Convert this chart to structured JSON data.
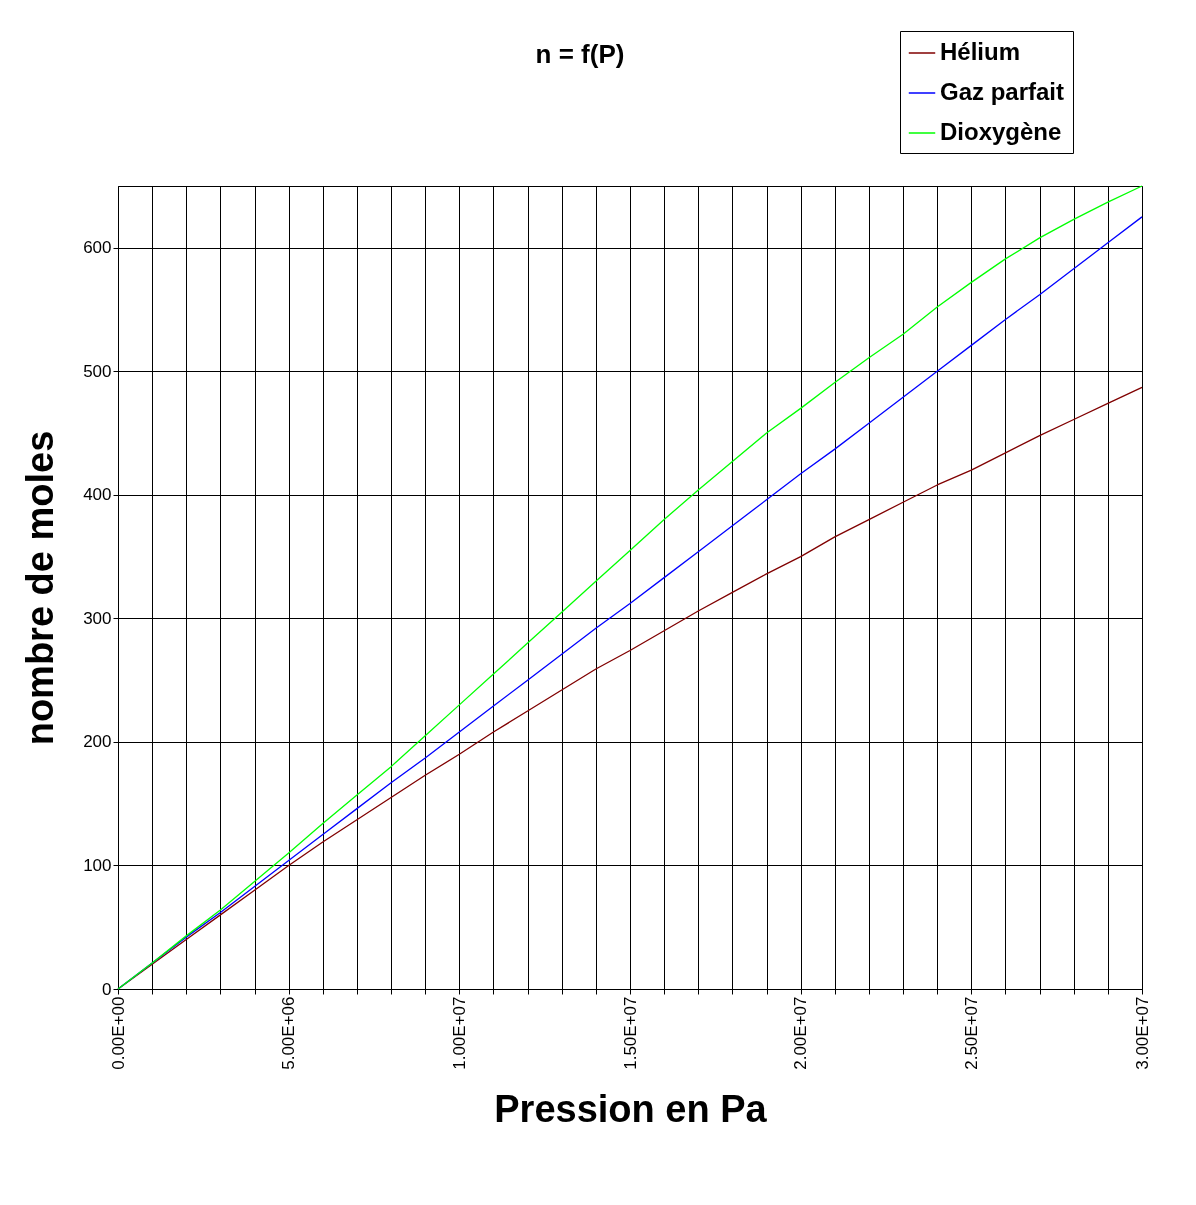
{
  "chart_data": {
    "type": "line",
    "title": "n = f(P)",
    "xlabel": "Pression en Pa",
    "ylabel": "nombre de moles",
    "x": [
      0,
      1000000,
      2000000,
      3000000,
      4000000,
      5000000,
      6000000,
      7000000,
      8000000,
      9000000,
      10000000,
      11000000,
      12000000,
      13000000,
      14000000,
      15000000,
      16000000,
      17000000,
      18000000,
      19000000,
      20000000,
      21000000,
      22000000,
      23000000,
      24000000,
      25000000,
      26000000,
      27000000,
      28000000,
      29000000,
      30000000
    ],
    "series": [
      {
        "name": "Hélium",
        "color": "#800000",
        "values": [
          0,
          20,
          40,
          60,
          80,
          100,
          119,
          137,
          155,
          173,
          190,
          208,
          225,
          242,
          259,
          274,
          290,
          306,
          321,
          336,
          350,
          366,
          380,
          394,
          408,
          420,
          434,
          448,
          461,
          474,
          487
        ]
      },
      {
        "name": "Gaz parfait",
        "color": "#0000ff",
        "values": [
          0,
          21,
          42,
          62,
          83,
          104,
          125,
          146,
          167,
          187,
          208,
          229,
          250,
          271,
          292,
          312,
          333,
          354,
          375,
          396,
          417,
          437,
          458,
          479,
          500,
          521,
          542,
          562,
          583,
          604,
          625
        ]
      },
      {
        "name": "Dioxygène",
        "color": "#00ff00",
        "values": [
          0,
          21,
          43,
          64,
          87,
          110,
          134,
          157,
          180,
          205,
          230,
          255,
          280,
          305,
          330,
          355,
          380,
          404,
          427,
          450,
          470,
          491,
          511,
          530,
          552,
          572,
          591,
          608,
          623,
          637,
          650
        ]
      }
    ],
    "xlim": [
      0,
      30000000
    ],
    "xticks": [
      {
        "value": 0,
        "label": "0.00E+00"
      },
      {
        "value": 1000000,
        "label": null
      },
      {
        "value": 2000000,
        "label": null
      },
      {
        "value": 3000000,
        "label": null
      },
      {
        "value": 4000000,
        "label": null
      },
      {
        "value": 5000000,
        "label": "5.00E+06"
      },
      {
        "value": 6000000,
        "label": null
      },
      {
        "value": 7000000,
        "label": null
      },
      {
        "value": 8000000,
        "label": null
      },
      {
        "value": 9000000,
        "label": null
      },
      {
        "value": 10000000,
        "label": "1.00E+07"
      },
      {
        "value": 11000000,
        "label": null
      },
      {
        "value": 12000000,
        "label": null
      },
      {
        "value": 13000000,
        "label": null
      },
      {
        "value": 14000000,
        "label": null
      },
      {
        "value": 15000000,
        "label": "1.50E+07"
      },
      {
        "value": 16000000,
        "label": null
      },
      {
        "value": 17000000,
        "label": null
      },
      {
        "value": 18000000,
        "label": null
      },
      {
        "value": 19000000,
        "label": null
      },
      {
        "value": 20000000,
        "label": "2.00E+07"
      },
      {
        "value": 21000000,
        "label": null
      },
      {
        "value": 22000000,
        "label": null
      },
      {
        "value": 23000000,
        "label": null
      },
      {
        "value": 24000000,
        "label": null
      },
      {
        "value": 25000000,
        "label": "2.50E+07"
      },
      {
        "value": 26000000,
        "label": null
      },
      {
        "value": 27000000,
        "label": null
      },
      {
        "value": 28000000,
        "label": null
      },
      {
        "value": 29000000,
        "label": null
      },
      {
        "value": 30000000,
        "label": "3.00E+07"
      }
    ],
    "ylim": [
      0,
      650
    ],
    "yticks": [
      0,
      100,
      200,
      300,
      400,
      500,
      600
    ],
    "grid": true,
    "legend": "top right",
    "marker": "none",
    "line_style": "solid"
  }
}
